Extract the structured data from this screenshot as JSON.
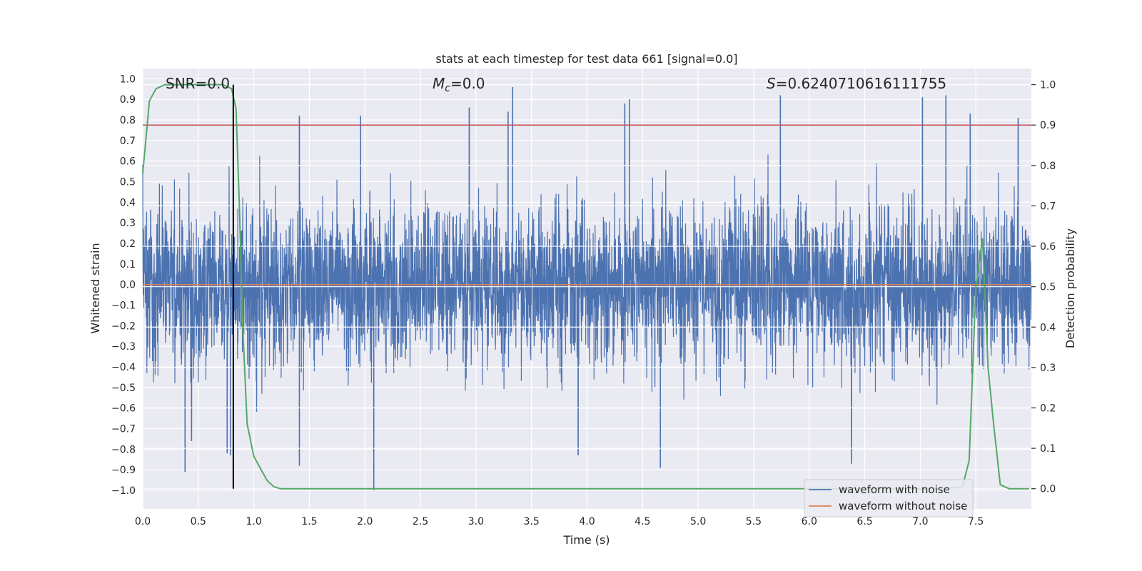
{
  "chart_data": {
    "type": "line",
    "title": "stats at each timestep for test data 661 [signal=0.0]",
    "xlabel": "Time (s)",
    "ylabel_left": "Whitened strain",
    "ylabel_right": "Detection probability",
    "xlim": [
      0.0,
      8.0
    ],
    "ylim_left": [
      -1.09,
      1.05
    ],
    "ylim_right": [
      -0.05,
      1.04
    ],
    "x_ticks": [
      0.0,
      0.5,
      1.0,
      1.5,
      2.0,
      2.5,
      3.0,
      3.5,
      4.0,
      4.5,
      5.0,
      5.5,
      6.0,
      6.5,
      7.0,
      7.5
    ],
    "x_tick_labels": [
      "0.0",
      "0.5",
      "1.0",
      "1.5",
      "2.0",
      "2.5",
      "3.0",
      "3.5",
      "4.0",
      "4.5",
      "5.0",
      "5.5",
      "6.0",
      "6.5",
      "7.0",
      "7.5"
    ],
    "y_left_ticks": [
      1.0,
      0.9,
      0.8,
      0.7,
      0.6,
      0.5,
      0.4,
      0.3,
      0.2,
      0.1,
      0.0,
      -0.1,
      -0.2,
      -0.3,
      -0.4,
      -0.5,
      -0.6,
      -0.7,
      -0.8,
      -0.9,
      -1.0
    ],
    "y_left_tick_labels": [
      "1.0",
      "0.9",
      "0.8",
      "0.7",
      "0.6",
      "0.5",
      "0.4",
      "0.3",
      "0.2",
      "0.1",
      "0.0",
      "−0.1",
      "−0.2",
      "−0.3",
      "−0.4",
      "−0.5",
      "−0.6",
      "−0.7",
      "−0.8",
      "−0.9",
      "−1.0"
    ],
    "y_right_ticks": [
      1.0,
      0.9,
      0.8,
      0.7,
      0.6,
      0.5,
      0.4,
      0.3,
      0.2,
      0.1,
      0.0
    ],
    "y_right_tick_labels": [
      "1.0",
      "0.9",
      "0.8",
      "0.7",
      "0.6",
      "0.5",
      "0.4",
      "0.3",
      "0.2",
      "0.1",
      "0.0"
    ],
    "annotations": {
      "snr": "SNR=0.0",
      "mc": "=0.0",
      "mc_symbol": "M",
      "mc_subscript": "c",
      "s": "=0.6240710616111755",
      "s_symbol": "S"
    },
    "threshold_right": 0.9,
    "marker_time": 0.815,
    "legend": [
      {
        "name": "waveform with noise",
        "color": "#4c72b0"
      },
      {
        "name": "waveform without noise",
        "color": "#dd8452"
      }
    ],
    "series": [
      {
        "name": "waveform with noise",
        "axis": "left",
        "color": "#4c72b0",
        "note": "dense whitened noise spanning roughly -0.5 to 0.5 with spikes up to 0.96 and down to -1.0",
        "spikes": [
          {
            "x": 0.38,
            "y": -0.91
          },
          {
            "x": 0.44,
            "y": -0.76
          },
          {
            "x": 0.76,
            "y": -0.82
          },
          {
            "x": 0.79,
            "y": -0.83
          },
          {
            "x": 1.41,
            "y": 0.82
          },
          {
            "x": 1.41,
            "y": -0.88
          },
          {
            "x": 2.08,
            "y": -1.0
          },
          {
            "x": 1.96,
            "y": 0.82
          },
          {
            "x": 2.94,
            "y": 0.86
          },
          {
            "x": 3.33,
            "y": 0.96
          },
          {
            "x": 3.29,
            "y": 0.84
          },
          {
            "x": 3.92,
            "y": -0.83
          },
          {
            "x": 4.34,
            "y": 0.88
          },
          {
            "x": 4.38,
            "y": 0.9
          },
          {
            "x": 4.66,
            "y": -0.89
          },
          {
            "x": 5.74,
            "y": 0.92
          },
          {
            "x": 6.38,
            "y": -0.87
          },
          {
            "x": 7.02,
            "y": 0.91
          },
          {
            "x": 7.23,
            "y": 0.92
          },
          {
            "x": 7.45,
            "y": 0.83
          },
          {
            "x": 7.88,
            "y": 0.81
          }
        ]
      },
      {
        "name": "waveform without noise",
        "axis": "left",
        "color": "#dd8452",
        "x": [
          0.0,
          8.0
        ],
        "y": [
          0.0,
          0.0
        ]
      },
      {
        "name": "Detection probability",
        "axis": "right",
        "color": "#55a868",
        "x": [
          0.0,
          0.06,
          0.12,
          0.2,
          0.3,
          0.5,
          0.72,
          0.8,
          0.84,
          0.87,
          0.9,
          0.94,
          1.0,
          1.06,
          1.12,
          1.18,
          1.24,
          1.3,
          7.2,
          7.38,
          7.44,
          7.5,
          7.56,
          7.61,
          7.66,
          7.72,
          7.8,
          7.9,
          7.98
        ],
        "y": [
          0.78,
          0.96,
          0.99,
          1.0,
          1.0,
          1.0,
          1.0,
          0.99,
          0.94,
          0.7,
          0.4,
          0.16,
          0.08,
          0.05,
          0.02,
          0.005,
          0.0,
          0.0,
          0.0,
          0.005,
          0.07,
          0.5,
          0.62,
          0.3,
          0.16,
          0.01,
          0.0,
          0.0,
          0.0
        ]
      },
      {
        "name": "threshold",
        "axis": "right",
        "color": "#c44e52",
        "x": [
          0.0,
          8.0
        ],
        "y": [
          0.9,
          0.9
        ]
      }
    ]
  }
}
